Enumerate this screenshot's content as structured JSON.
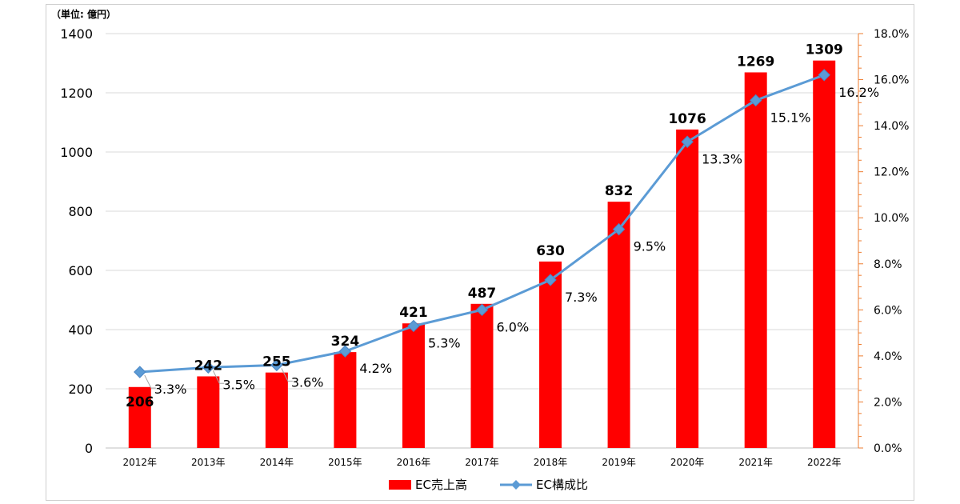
{
  "chart_data": {
    "type": "bar+line",
    "unit_label": "（単位: 億円）",
    "categories": [
      "2012年",
      "2013年",
      "2014年",
      "2015年",
      "2016年",
      "2017年",
      "2018年",
      "2019年",
      "2020年",
      "2021年",
      "2022年"
    ],
    "series": [
      {
        "name": "EC売上高",
        "type": "bar",
        "axis": "left",
        "color": "#ff0000",
        "values": [
          206,
          242,
          255,
          324,
          421,
          487,
          630,
          832,
          1076,
          1269,
          1309
        ],
        "labels": [
          "206",
          "242",
          "255",
          "324",
          "421",
          "487",
          "630",
          "832",
          "1076",
          "1269",
          "1309"
        ]
      },
      {
        "name": "EC構成比",
        "type": "line",
        "axis": "right",
        "color": "#5b9bd5",
        "marker_color": "#5b9bd5",
        "values": [
          3.3,
          3.5,
          3.6,
          4.2,
          5.3,
          6.0,
          7.3,
          9.5,
          13.3,
          15.1,
          16.2
        ],
        "labels": [
          "3.3%",
          "3.5%",
          "3.6%",
          "4.2%",
          "5.3%",
          "6.0%",
          "7.3%",
          "9.5%",
          "13.3%",
          "15.1%",
          "16.2%"
        ]
      }
    ],
    "y_left": {
      "min": 0,
      "max": 1400,
      "ticks": [
        "0",
        "200",
        "400",
        "600",
        "800",
        "1000",
        "1200",
        "1400"
      ]
    },
    "y_right": {
      "min": 0,
      "max": 18,
      "ticks": [
        "0.0%",
        "2.0%",
        "4.0%",
        "6.0%",
        "8.0%",
        "10.0%",
        "12.0%",
        "14.0%",
        "16.0%",
        "18.0%"
      ],
      "axis_color": "#ed7d31"
    },
    "grid": true,
    "legend_position": "bottom"
  }
}
